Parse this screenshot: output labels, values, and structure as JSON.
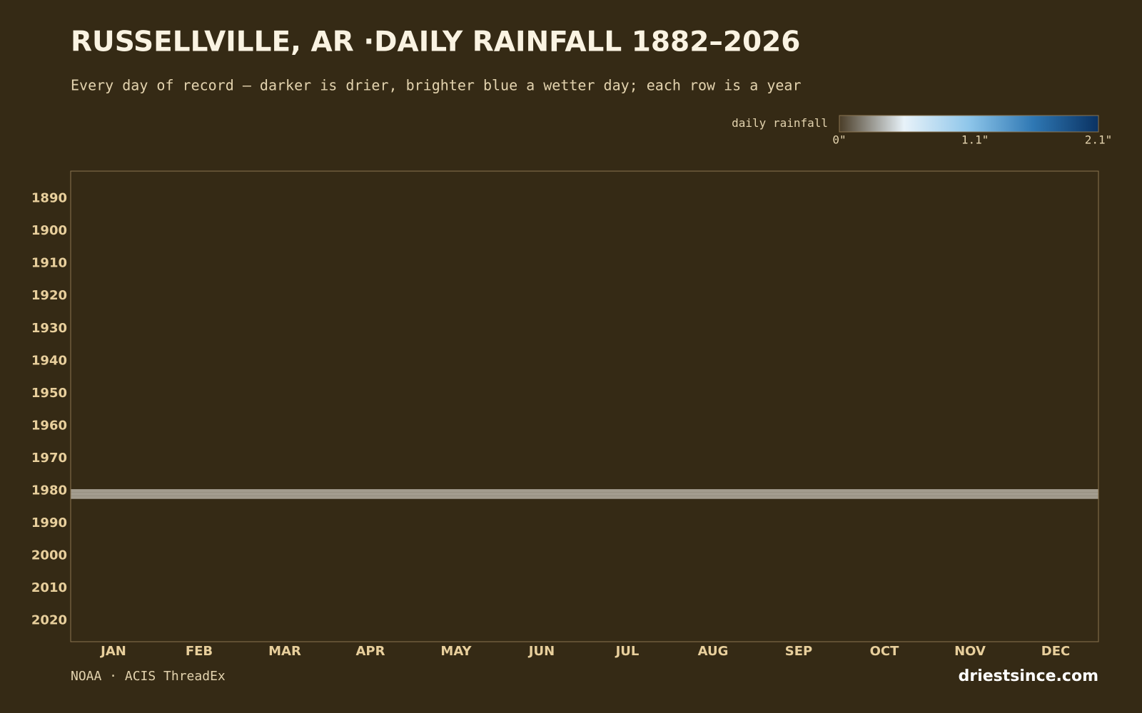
{
  "title": "RUSSELLVILLE, AR ·DAILY RAINFALL 1882–2026",
  "subtitle": "Every day of record — darker is drier, brighter blue a wetter day; each row is a year",
  "source": "NOAA · ACIS ThreadEx",
  "brand": "driestsince.com",
  "chart_data": {
    "type": "heatmap",
    "categories": [
      "JAN",
      "FEB",
      "MAR",
      "APR",
      "MAY",
      "JUN",
      "JUL",
      "AUG",
      "SEP",
      "OCT",
      "NOV",
      "DEC"
    ],
    "ylim": [
      1881.5,
      2026.5
    ],
    "yticks": [
      1890,
      1900,
      1910,
      1920,
      1930,
      1940,
      1950,
      1960,
      1970,
      1980,
      1990,
      2000,
      2010,
      2020
    ],
    "background": "#352a15",
    "missing_color": "#a39c8e",
    "missing_years": [
      1980,
      1981,
      1982
    ],
    "colorbar": {
      "label": "daily rainfall",
      "lim": [
        0,
        2.1
      ],
      "ticks": [
        {
          "value": 0,
          "label": "0\""
        },
        {
          "value": 1.1,
          "label": "1.1\""
        },
        {
          "value": 2.1,
          "label": "2.1\""
        }
      ],
      "colors": [
        "#4a3d28",
        "#e8f2f9",
        "#8ec6ea",
        "#2e77b3",
        "#0a3262"
      ]
    }
  }
}
